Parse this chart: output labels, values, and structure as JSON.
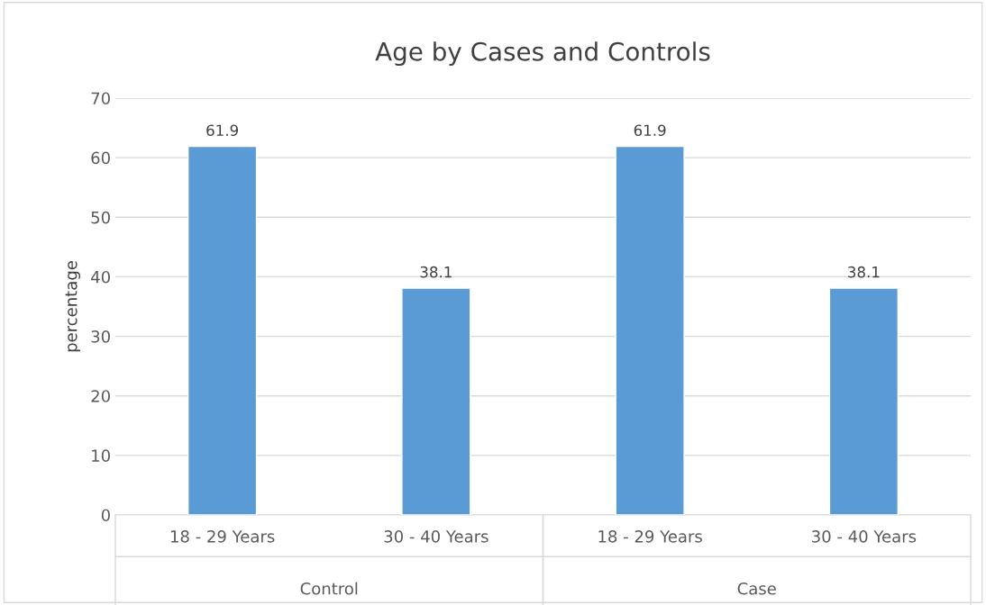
{
  "chart_data": {
    "type": "bar",
    "title": "Age by Cases and Controls",
    "ylabel": "percentage",
    "categories": [
      "18 - 29 Years",
      "30 - 40 Years",
      "18 - 29 Years",
      "30 - 40 Years"
    ],
    "values": [
      61.9,
      38.1,
      61.9,
      38.1
    ],
    "color": "#5b9bd5",
    "ylim": [
      0,
      70
    ],
    "yticks": [
      0,
      10,
      20,
      30,
      40,
      50,
      60,
      70
    ],
    "grid": "y",
    "data_labels": true,
    "annotations": [
      "Control",
      "Case"
    ]
  }
}
